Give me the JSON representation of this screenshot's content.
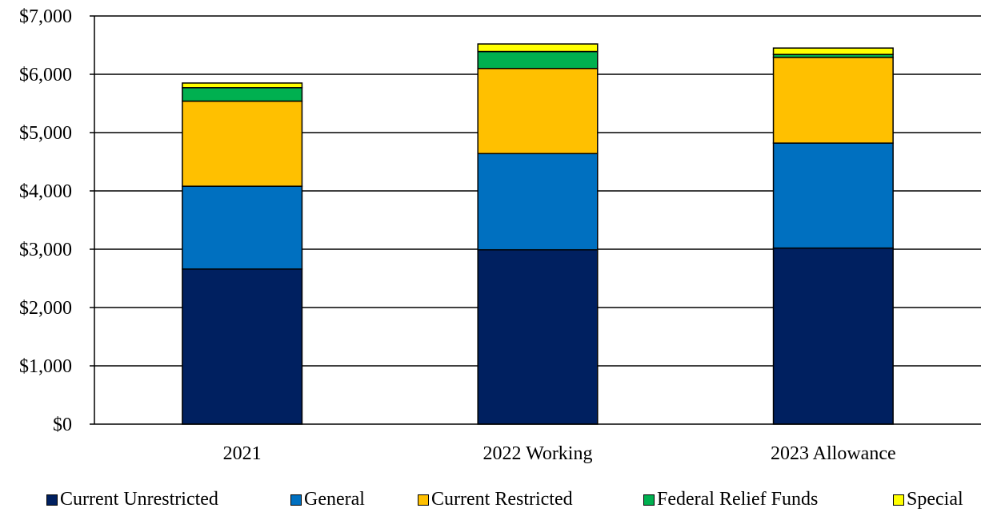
{
  "chart_data": {
    "type": "bar",
    "stacked": true,
    "categories": [
      "2021",
      "2022 Working",
      "2023 Allowance"
    ],
    "series": [
      {
        "name": "Current Unrestricted",
        "color": "#002060",
        "values": [
          2660,
          2990,
          3020
        ]
      },
      {
        "name": "General",
        "color": "#0070C0",
        "values": [
          1420,
          1650,
          1800
        ]
      },
      {
        "name": "Current Restricted",
        "color": "#FFC000",
        "values": [
          1460,
          1460,
          1470
        ]
      },
      {
        "name": "Federal Relief Funds",
        "color": "#00B050",
        "values": [
          230,
          290,
          50
        ]
      },
      {
        "name": "Special",
        "color": "#FFFF00",
        "values": [
          80,
          130,
          110
        ]
      }
    ],
    "ylim": [
      0,
      7000
    ],
    "yticks": [
      0,
      1000,
      2000,
      3000,
      4000,
      5000,
      6000,
      7000
    ],
    "ytick_labels": [
      "$0",
      "$1,000",
      "$2,000",
      "$3,000",
      "$4,000",
      "$5,000",
      "$6,000",
      "$7,000"
    ],
    "grid": true,
    "legend_position": "bottom"
  }
}
